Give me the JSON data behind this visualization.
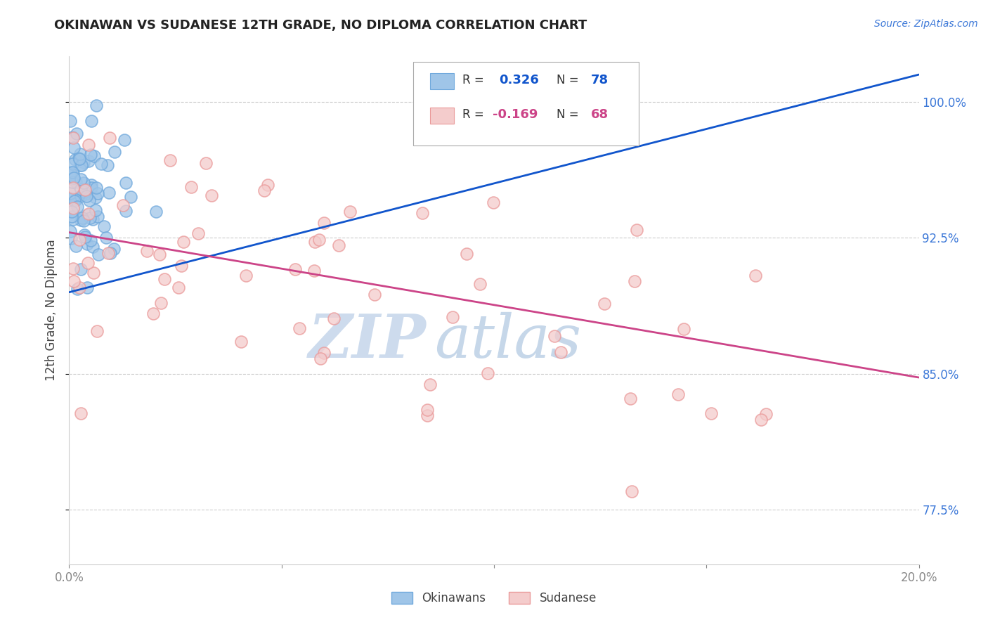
{
  "title": "OKINAWAN VS SUDANESE 12TH GRADE, NO DIPLOMA CORRELATION CHART",
  "source": "Source: ZipAtlas.com",
  "ylabel": "12th Grade, No Diploma",
  "xlim": [
    0.0,
    0.2
  ],
  "ylim": [
    0.745,
    1.025
  ],
  "xticks": [
    0.0,
    0.05,
    0.1,
    0.15,
    0.2
  ],
  "xtick_labels": [
    "0.0%",
    "",
    "",
    "",
    "20.0%"
  ],
  "ytick_vals": [
    0.775,
    0.85,
    0.925,
    1.0
  ],
  "ytick_labels": [
    "77.5%",
    "85.0%",
    "92.5%",
    "100.0%"
  ],
  "okinawan_color": "#9fc5e8",
  "okinawan_edge": "#6fa8dc",
  "sudanese_color": "#f4cccc",
  "sudanese_edge": "#ea9999",
  "blue_line_color": "#1155cc",
  "pink_line_color": "#cc4488",
  "R_okinawan": 0.326,
  "N_okinawan": 78,
  "R_sudanese": -0.169,
  "N_sudanese": 68,
  "watermark_zip": "ZIP",
  "watermark_atlas": "atlas",
  "watermark_color_zip": "#c9d9f0",
  "watermark_color_atlas": "#b0c4de",
  "legend_okinawan": "Okinawans",
  "legend_sudanese": "Sudanese",
  "background_color": "#ffffff",
  "grid_color": "#cccccc",
  "title_color": "#222222",
  "axis_label_color": "#444444",
  "tick_color": "#888888",
  "right_tick_color": "#3c78d8",
  "figsize": [
    14.06,
    8.92
  ],
  "dpi": 100,
  "blue_line_x0": 0.0,
  "blue_line_x1": 0.2,
  "blue_line_y0": 0.895,
  "blue_line_y1": 1.015,
  "pink_line_x0": 0.0,
  "pink_line_x1": 0.2,
  "pink_line_y0": 0.928,
  "pink_line_y1": 0.848
}
